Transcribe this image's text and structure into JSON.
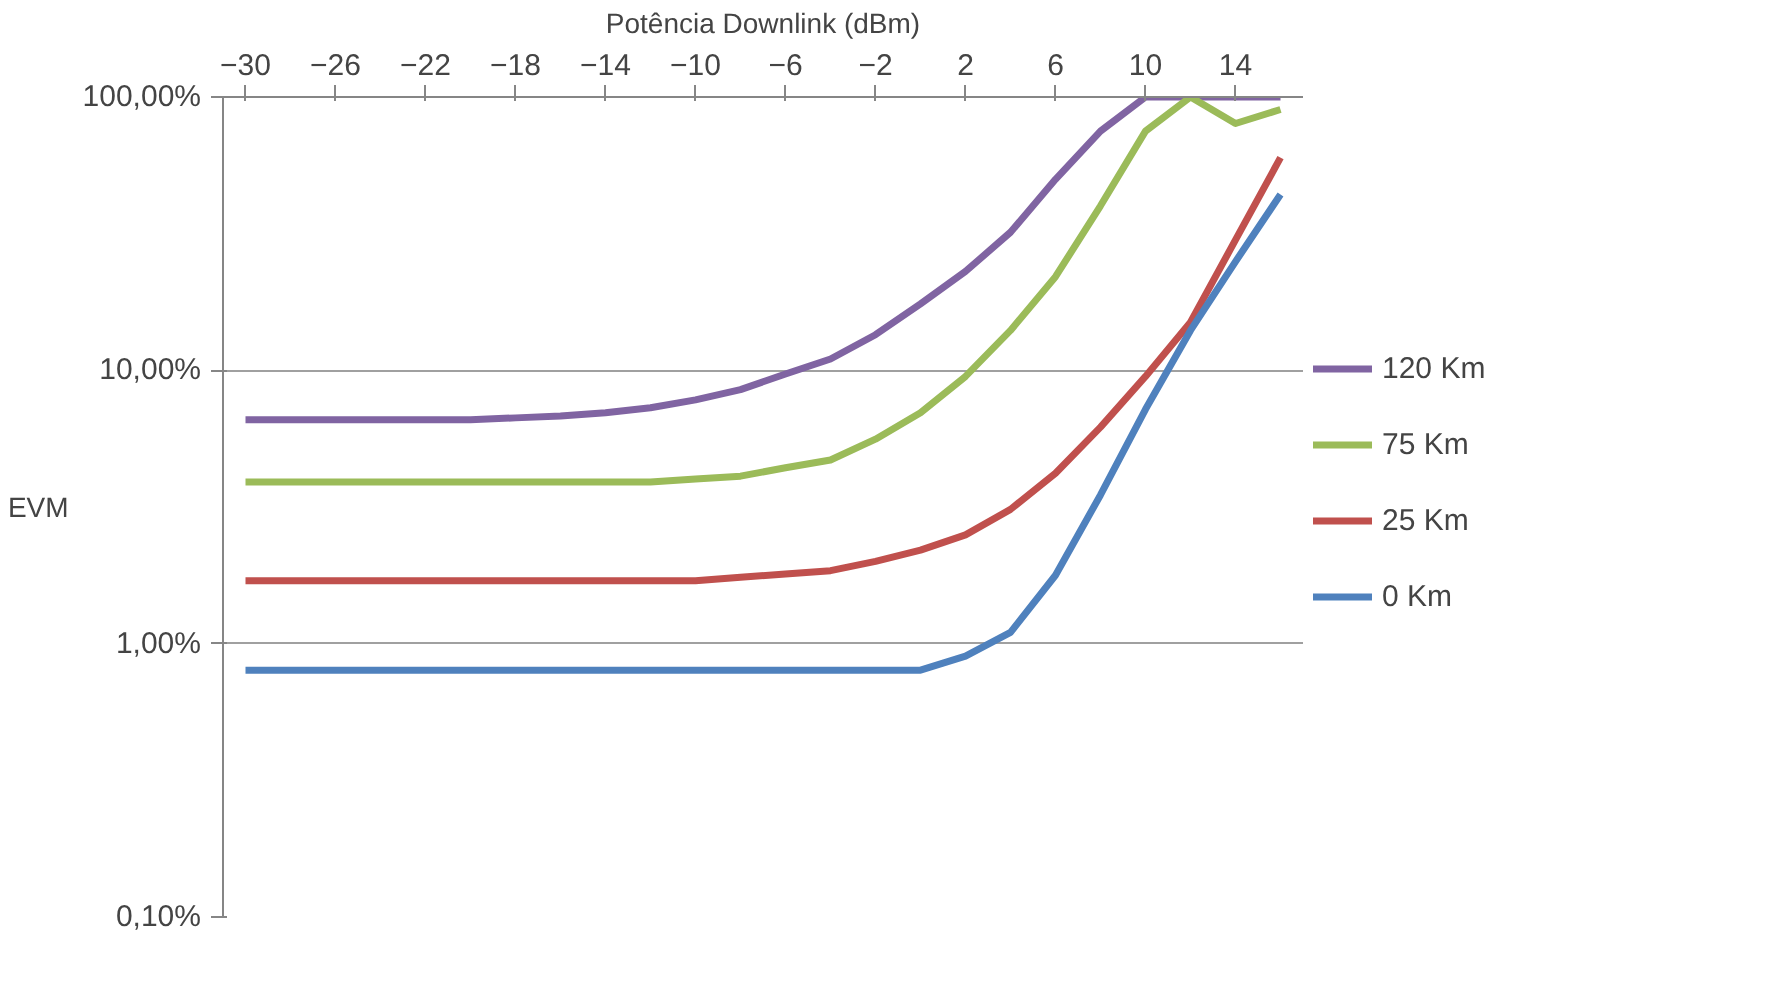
{
  "chart_data": {
    "type": "line",
    "xlabel": "Potência Downlink (dBm)",
    "ylabel": "EVM",
    "x": [
      -30,
      -28,
      -26,
      -24,
      -22,
      -20,
      -18,
      -16,
      -14,
      -12,
      -10,
      -8,
      -6,
      -4,
      -2,
      0,
      2,
      4,
      6,
      8,
      10,
      12,
      14,
      16
    ],
    "xlim": [
      -31,
      17
    ],
    "xticks": [
      -30,
      -26,
      -22,
      -18,
      -14,
      -10,
      -6,
      -2,
      2,
      6,
      10,
      14
    ],
    "ylim": [
      0.1,
      100
    ],
    "yticks": [
      {
        "value": 0.1,
        "label": "0,10%"
      },
      {
        "value": 1,
        "label": "1,00%"
      },
      {
        "value": 10,
        "label": "10,00%"
      },
      {
        "value": 100,
        "label": "100,00%"
      }
    ],
    "log": "y",
    "grid": "y",
    "legend": "right",
    "marker": "none",
    "line_style": "solid",
    "series": [
      {
        "name": "120 Km",
        "color": "#8064a2",
        "values": [
          6.6,
          6.6,
          6.6,
          6.6,
          6.6,
          6.6,
          6.7,
          6.8,
          7.0,
          7.3,
          7.8,
          8.5,
          9.7,
          11,
          13.5,
          17.5,
          23,
          32,
          50,
          75,
          100,
          100,
          100,
          100
        ]
      },
      {
        "name": "75 Km",
        "color": "#9bbb59",
        "values": [
          3.9,
          3.9,
          3.9,
          3.9,
          3.9,
          3.9,
          3.9,
          3.9,
          3.9,
          3.9,
          4.0,
          4.1,
          4.4,
          4.7,
          5.6,
          7,
          9.5,
          14,
          22,
          40,
          75,
          100,
          80,
          90
        ]
      },
      {
        "name": "25 Km",
        "color": "#c0504d",
        "values": [
          1.7,
          1.7,
          1.7,
          1.7,
          1.7,
          1.7,
          1.7,
          1.7,
          1.7,
          1.7,
          1.7,
          1.75,
          1.8,
          1.85,
          2.0,
          2.2,
          2.5,
          3.1,
          4.2,
          6.2,
          9.5,
          15,
          30,
          60
        ]
      },
      {
        "name": "0 Km",
        "color": "#4f81bd",
        "values": [
          0.8,
          0.8,
          0.8,
          0.8,
          0.8,
          0.8,
          0.8,
          0.8,
          0.8,
          0.8,
          0.8,
          0.8,
          0.8,
          0.8,
          0.8,
          0.8,
          0.9,
          1.1,
          1.78,
          3.5,
          7.2,
          14,
          25,
          44
        ]
      }
    ]
  }
}
